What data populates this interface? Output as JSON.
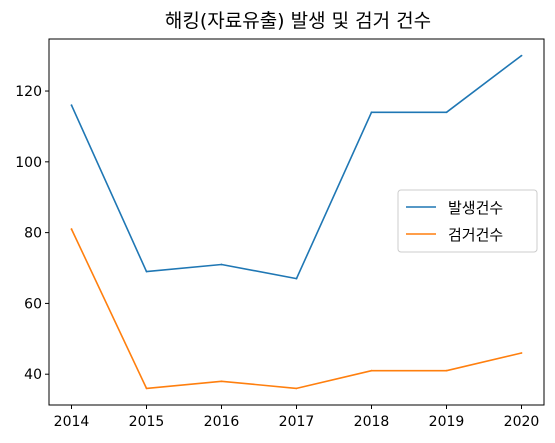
{
  "chart_data": {
    "type": "line",
    "title": "해킹(자료유출) 발생 및 검거 건수",
    "x": [
      2014,
      2015,
      2016,
      2017,
      2018,
      2019,
      2020
    ],
    "series": [
      {
        "name": "발생건수",
        "values": [
          116,
          69,
          71,
          67,
          114,
          114,
          130
        ],
        "color": "#1f77b4"
      },
      {
        "name": "검거건수",
        "values": [
          81,
          36,
          38,
          36,
          41,
          41,
          46
        ],
        "color": "#ff7f0e"
      }
    ],
    "xlabel": "",
    "ylabel": "",
    "xlim": [
      2013.7,
      2020.3
    ],
    "ylim": [
      31.3,
      134.7
    ],
    "yticks": [
      40,
      60,
      80,
      100,
      120
    ],
    "grid": false,
    "legend_position": "center-right"
  }
}
